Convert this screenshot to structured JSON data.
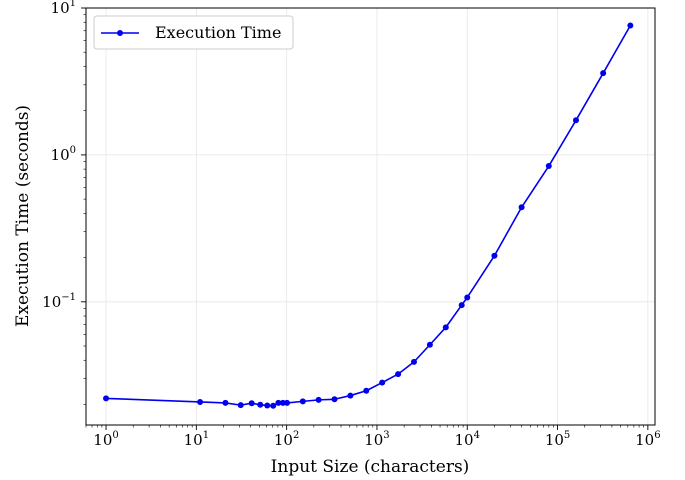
{
  "chart_data": {
    "type": "line",
    "xlabel": "Input Size (characters)",
    "ylabel": "Execution Time (seconds)",
    "xscale": "log",
    "yscale": "log",
    "xlim": [
      0.6,
      1200000
    ],
    "ylim": [
      0.0145,
      10
    ],
    "grid": true,
    "legend_position": "top-left",
    "x_ticks": [
      {
        "base": "10",
        "exp": "0",
        "value": 1
      },
      {
        "base": "10",
        "exp": "1",
        "value": 10
      },
      {
        "base": "10",
        "exp": "2",
        "value": 100
      },
      {
        "base": "10",
        "exp": "3",
        "value": 1000
      },
      {
        "base": "10",
        "exp": "4",
        "value": 10000
      },
      {
        "base": "10",
        "exp": "5",
        "value": 100000
      },
      {
        "base": "10",
        "exp": "6",
        "value": 1000000
      }
    ],
    "y_ticks": [
      {
        "base": "10",
        "exp": "−1",
        "value": 0.1
      },
      {
        "base": "10",
        "exp": "0",
        "value": 1
      },
      {
        "base": "10",
        "exp": "1",
        "value": 10
      }
    ],
    "series": [
      {
        "name": "Execution Time",
        "color": "#0000ee",
        "x": [
          1,
          11,
          21,
          31,
          41,
          51,
          61,
          71,
          81,
          91,
          101,
          151,
          226,
          339,
          508,
          762,
          1143,
          1715,
          2572,
          3858,
          5787,
          8681,
          10000,
          20000,
          40000,
          80000,
          160000,
          320000,
          640000
        ],
        "y": [
          0.022,
          0.0208,
          0.0205,
          0.0198,
          0.0204,
          0.0199,
          0.0197,
          0.0196,
          0.0205,
          0.0205,
          0.0205,
          0.021,
          0.0215,
          0.0217,
          0.023,
          0.0248,
          0.0282,
          0.0322,
          0.039,
          0.051,
          0.067,
          0.095,
          0.107,
          0.206,
          0.44,
          0.84,
          1.72,
          3.6,
          7.6
        ]
      }
    ]
  }
}
